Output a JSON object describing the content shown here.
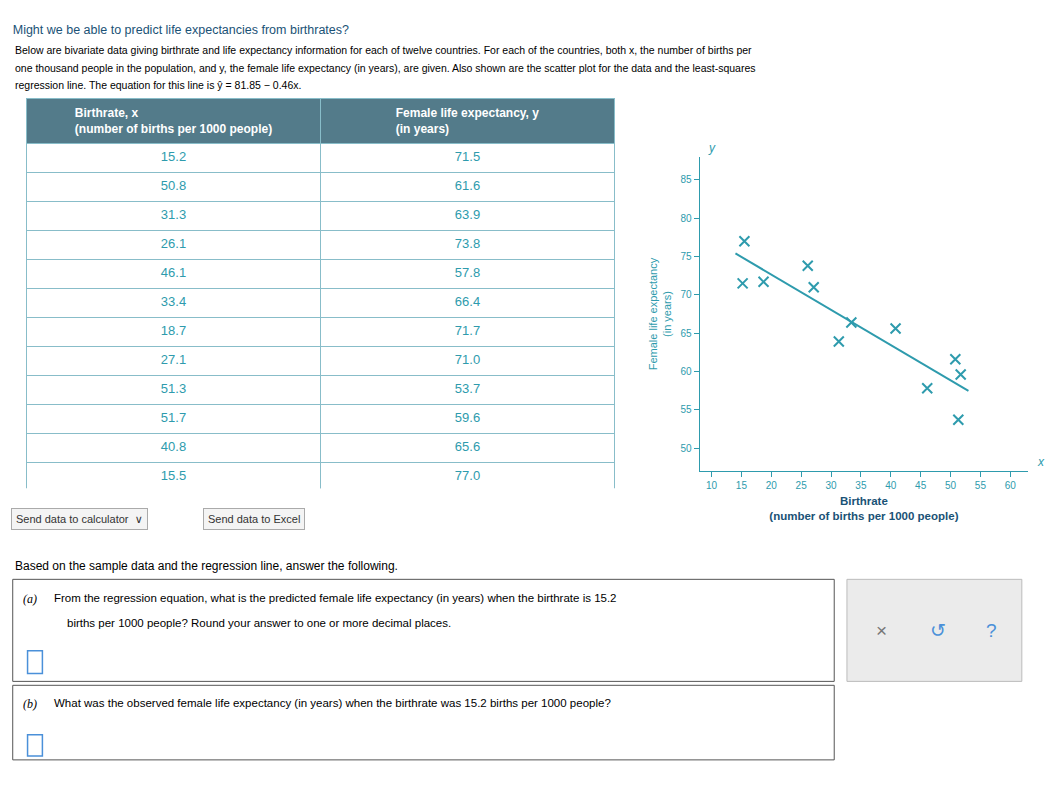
{
  "chart_data": {
    "type": "scatter",
    "title": "Might we be able to predict life expectancies from birthrates?",
    "subtitle": [
      "Below are bivariate data giving birthrate and life expectancy information for each of twelve countries. For each of the countries, both x, the number of births per",
      "one thousand people in the population, and y, the female life expectancy (in years), are given. Also shown are the scatter plot for the data and the least-squares",
      "regression line. The equation for this line is ŷ = 81.85 − 0.46x."
    ],
    "xlabel": [
      "Birthrate",
      "(number of births per 1000 people)"
    ],
    "ylabel": [
      "Female life expectancy",
      "(in years)"
    ],
    "xlim": [
      8,
      63
    ],
    "ylim": [
      47,
      88
    ],
    "xticks": [
      10,
      15,
      20,
      25,
      30,
      35,
      40,
      45,
      50,
      55,
      60
    ],
    "yticks": [
      50,
      55,
      60,
      65,
      70,
      75,
      80,
      85
    ],
    "grid": false,
    "series": [
      {
        "type": "scatter",
        "marker": "x",
        "color": "#2E9BAD",
        "x": [
          15.2,
          50.8,
          31.3,
          26.1,
          46.1,
          33.4,
          18.7,
          27.1,
          51.3,
          51.7,
          40.8,
          15.5
        ],
        "values": [
          71.5,
          61.6,
          63.9,
          73.8,
          57.8,
          66.4,
          71.7,
          71.0,
          53.7,
          59.6,
          65.6,
          77.0
        ]
      },
      {
        "type": "line",
        "line_style": "solid",
        "color": "#2E9BAD",
        "x": [
          14,
          53
        ],
        "values": [
          75.41,
          57.47
        ]
      }
    ],
    "annotations": [
      "Send data to calculator  ∨",
      "Send data to Excel",
      "Based on the sample data and the regression line, answer the following.",
      "(a)",
      "From the regression equation, what is the predicted female life expectancy (in years) when the birthrate is 15.2",
      "births per 1000 people? Round your answer to one or more decimal places.",
      "(b)",
      "What was the observed female life expectancy (in years) when the birthrate was 15.2 births per 1000 people?",
      "×",
      "↺",
      "?",
      "x",
      "y",
      "Birthrate, x",
      "(number of births per 1000 people)",
      "Female life expectancy, y",
      "(in years)"
    ]
  }
}
